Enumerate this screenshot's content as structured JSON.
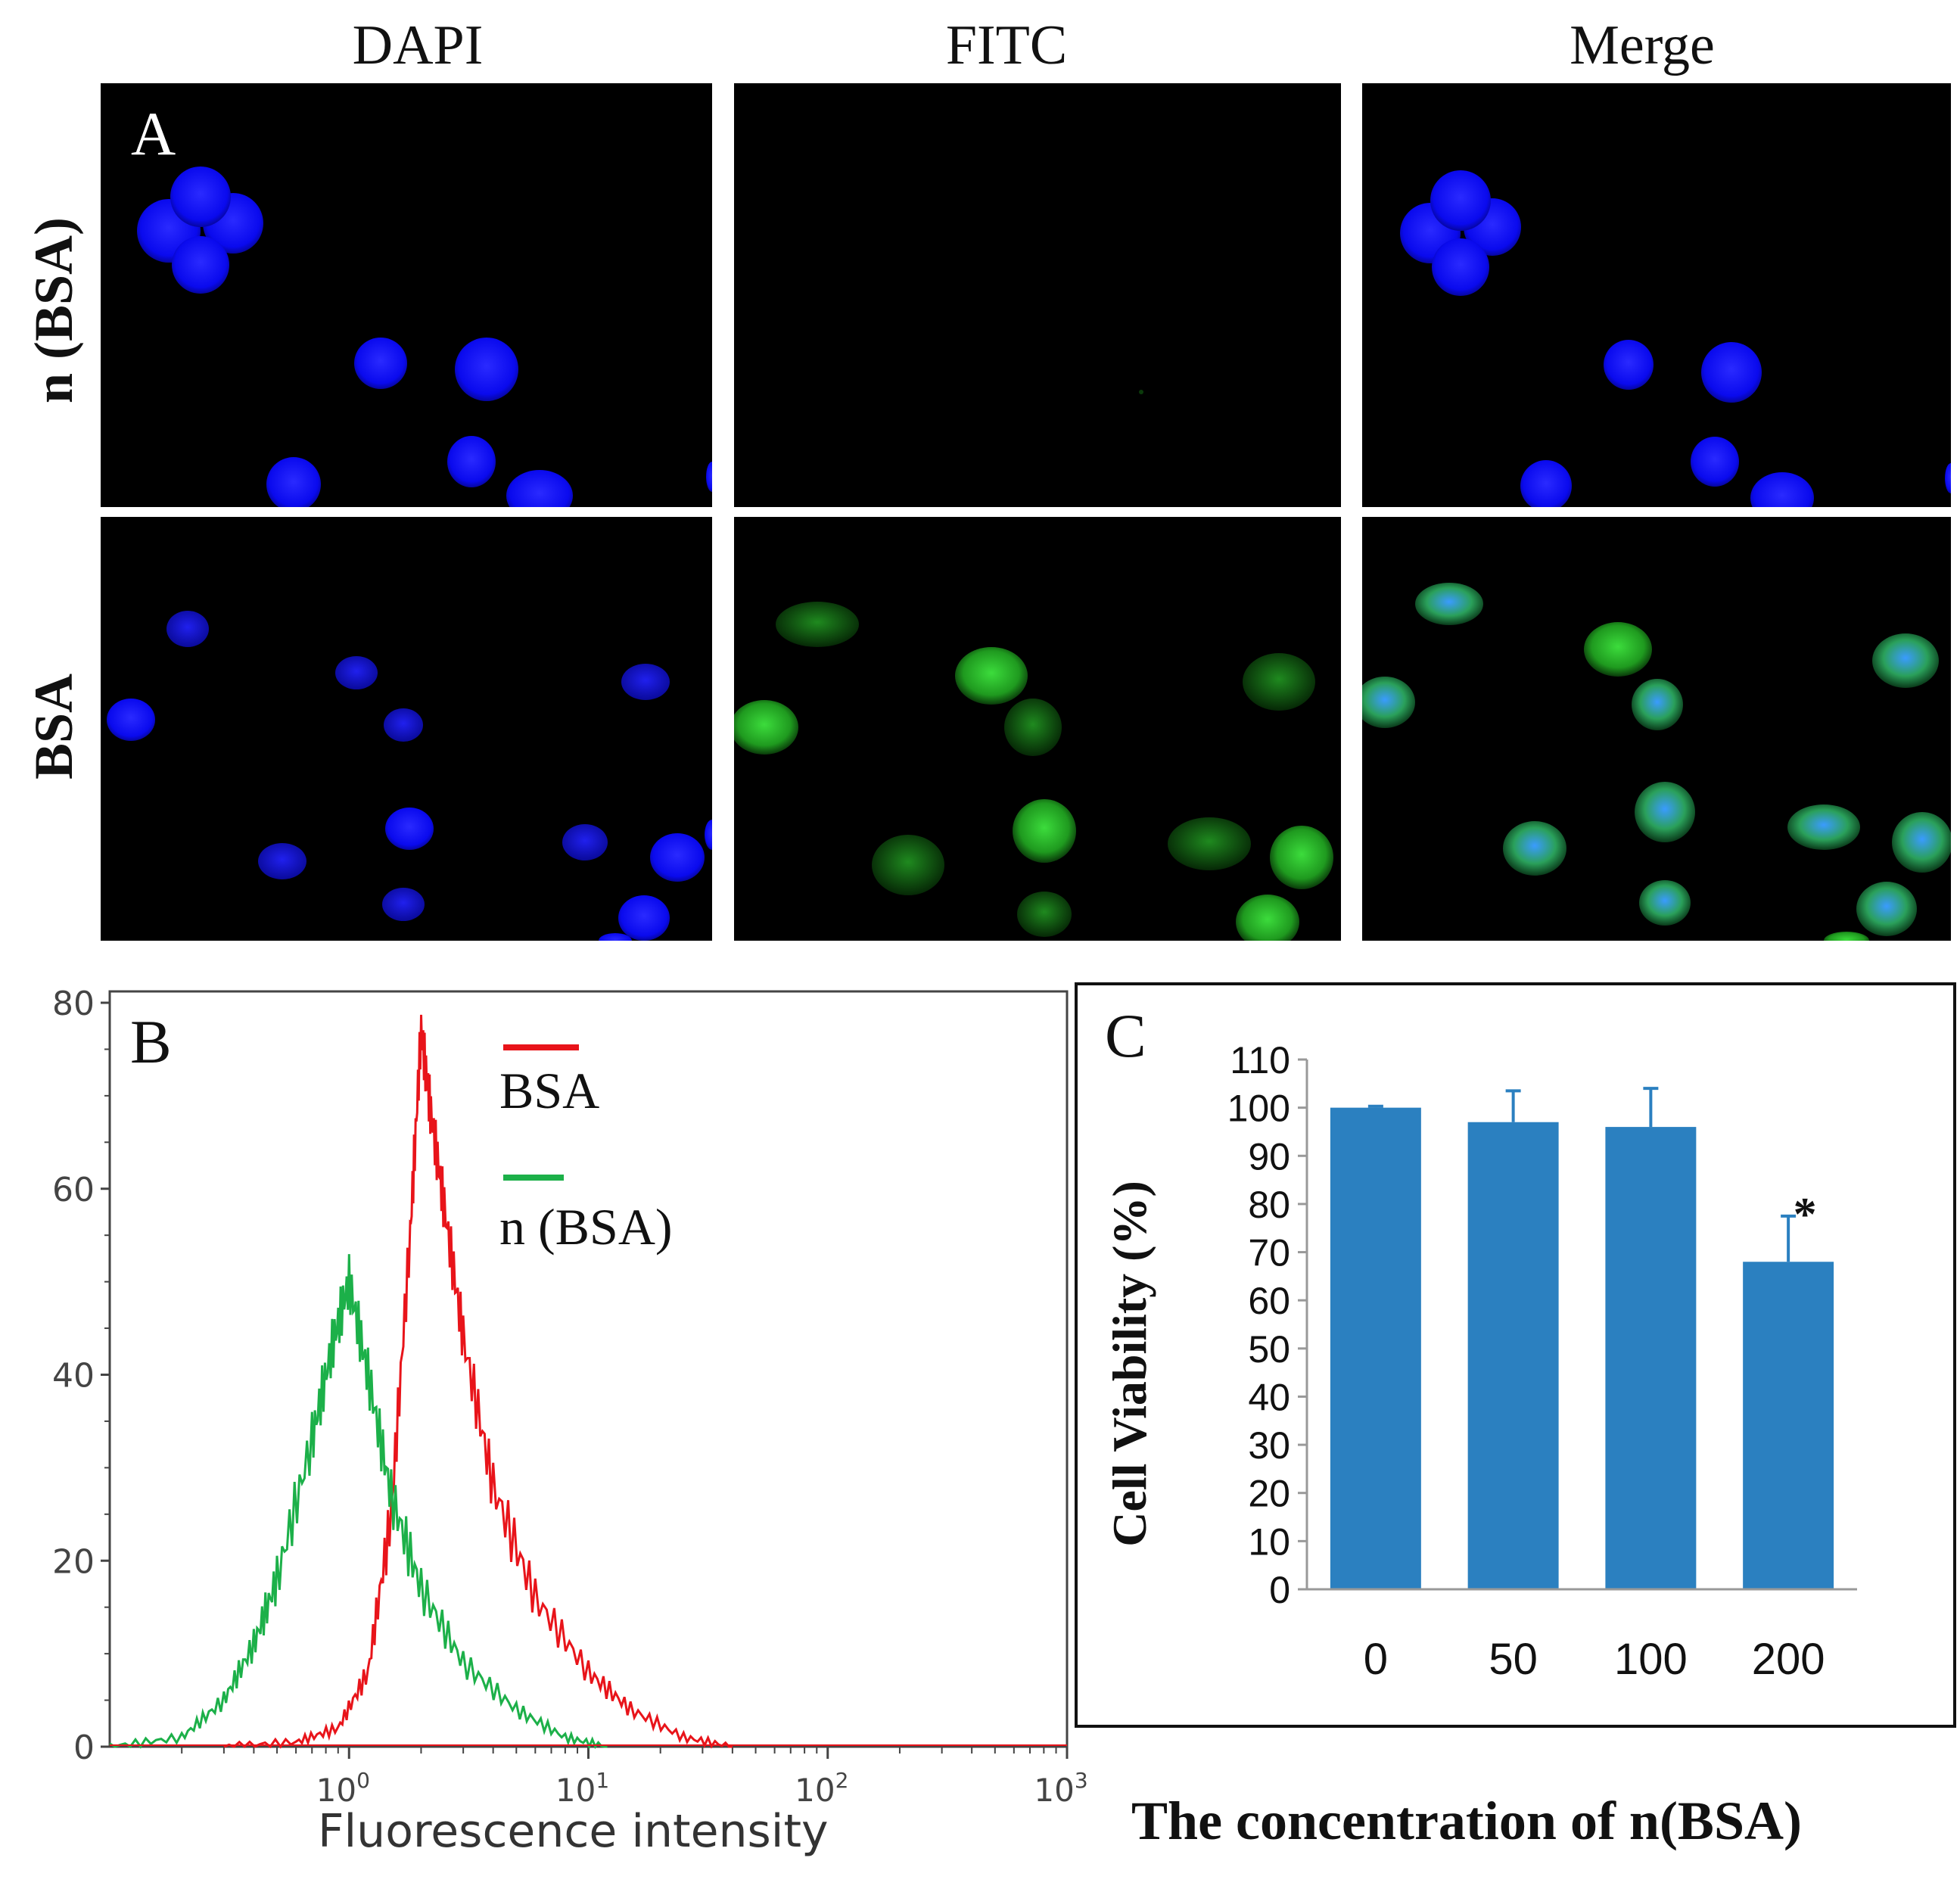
{
  "panelA": {
    "letter": "A",
    "columns": [
      "DAPI",
      "FITC",
      "Merge"
    ],
    "rows": [
      "n (BSA)",
      "BSA"
    ]
  },
  "panelB": {
    "letter": "B",
    "legend": [
      {
        "label": "BSA",
        "color": "#e8141a"
      },
      {
        "label": "n (BSA)",
        "color": "#1cb049"
      }
    ],
    "xlabel": "Fluorescence intensity",
    "yticks": [
      "0",
      "20",
      "40",
      "60",
      "80"
    ],
    "xticks": [
      {
        "base": "10",
        "exp": "0"
      },
      {
        "base": "10",
        "exp": "1"
      },
      {
        "base": "10",
        "exp": "2"
      },
      {
        "base": "10",
        "exp": "3"
      }
    ]
  },
  "panelC": {
    "letter": "C",
    "bar_color": "#2b80c0",
    "significance_mark": "*",
    "bottom_caption": "The concentration of  n(BSA)"
  },
  "chart_data": [
    {
      "type": "line",
      "title": "",
      "xlabel": "Fluorescence intensity",
      "ylabel": "",
      "x_scale": "log",
      "xlim": [
        0.1,
        1000
      ],
      "ylim": [
        0,
        80
      ],
      "series": [
        {
          "name": "BSA",
          "x": [
            0.3,
            0.6,
            0.9,
            1.2,
            1.5,
            1.8,
            2.0,
            2.2,
            2.5,
            3.0,
            4.0,
            6.0,
            10,
            15,
            25,
            40
          ],
          "values": [
            0,
            0.5,
            2,
            8,
            25,
            55,
            77,
            68,
            58,
            44,
            28,
            16,
            8,
            4,
            1,
            0
          ]
        },
        {
          "name": "n (BSA)",
          "x": [
            0.1,
            0.2,
            0.3,
            0.4,
            0.5,
            0.7,
            0.85,
            1.0,
            1.2,
            1.5,
            2.0,
            3.0,
            5.0,
            8.0,
            12
          ],
          "values": [
            0,
            1,
            5,
            11,
            18,
            33,
            43,
            50,
            40,
            27,
            17,
            9,
            4,
            1,
            0
          ]
        }
      ]
    },
    {
      "type": "bar",
      "title": "",
      "xlabel": "The concentration of  n(BSA)",
      "ylabel": "Cell  Viability (%)",
      "categories": [
        "0",
        "50",
        "100",
        "200"
      ],
      "values": [
        100,
        97,
        96,
        68
      ],
      "errors": [
        0.3,
        6.5,
        8,
        9.5
      ],
      "ylim": [
        0,
        110
      ],
      "yticks": [
        "0",
        "10",
        "20",
        "30",
        "40",
        "50",
        "60",
        "70",
        "80",
        "90",
        "100",
        "110"
      ]
    }
  ]
}
